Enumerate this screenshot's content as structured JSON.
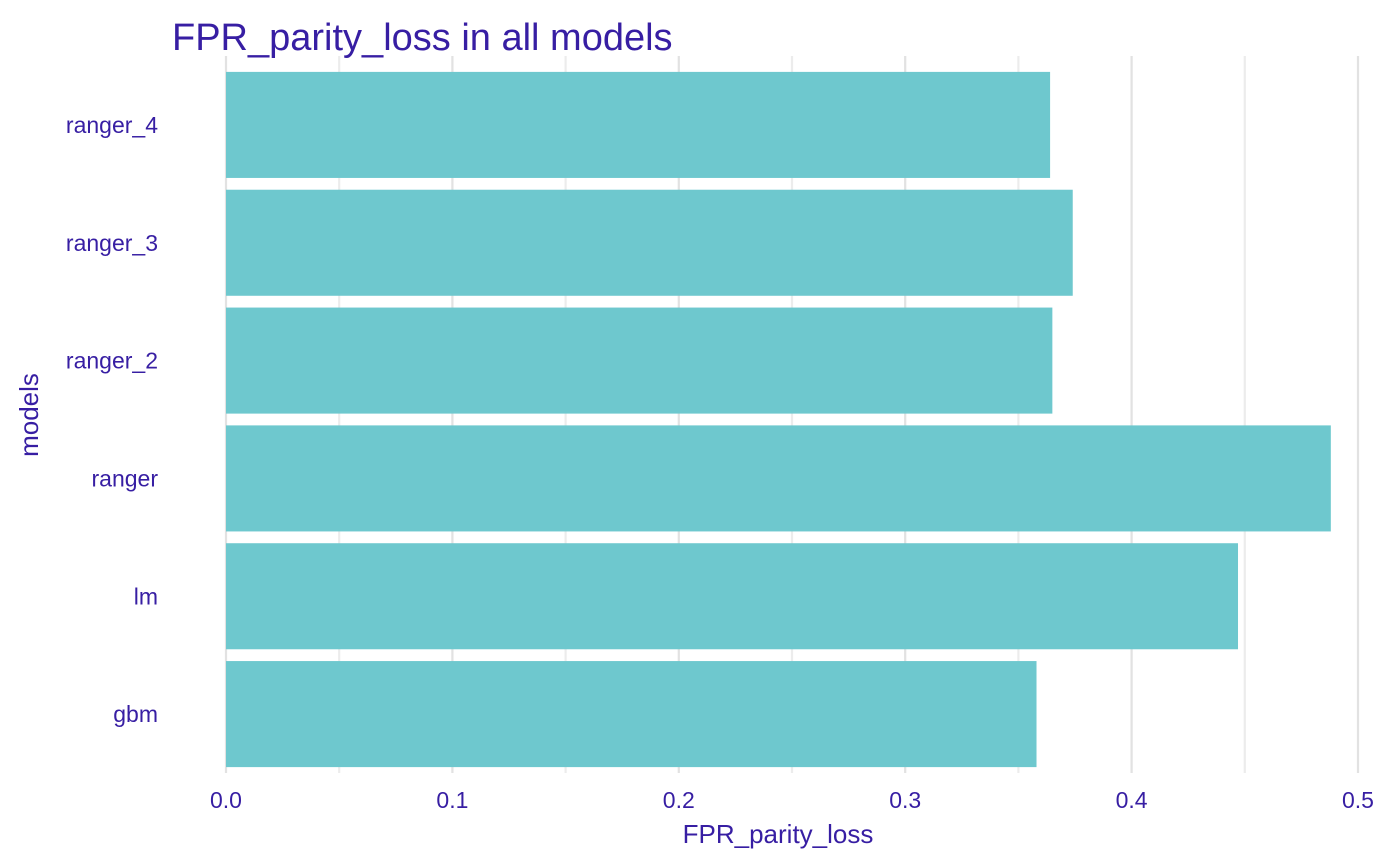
{
  "chart_data": {
    "type": "bar",
    "orientation": "horizontal",
    "title": "FPR_parity_loss in all models",
    "xlabel": "FPR_parity_loss",
    "ylabel": "models",
    "categories": [
      "gbm",
      "lm",
      "ranger",
      "ranger_2",
      "ranger_3",
      "ranger_4"
    ],
    "values": [
      0.358,
      0.447,
      0.488,
      0.365,
      0.374,
      0.364
    ],
    "xlim": [
      0,
      0.5
    ],
    "x_ticks": [
      "0.0",
      "0.1",
      "0.2",
      "0.3",
      "0.4",
      "0.5"
    ],
    "bar_color": "#6bc7cd",
    "text_color": "#371ea3",
    "grid": true,
    "legend": "none"
  }
}
